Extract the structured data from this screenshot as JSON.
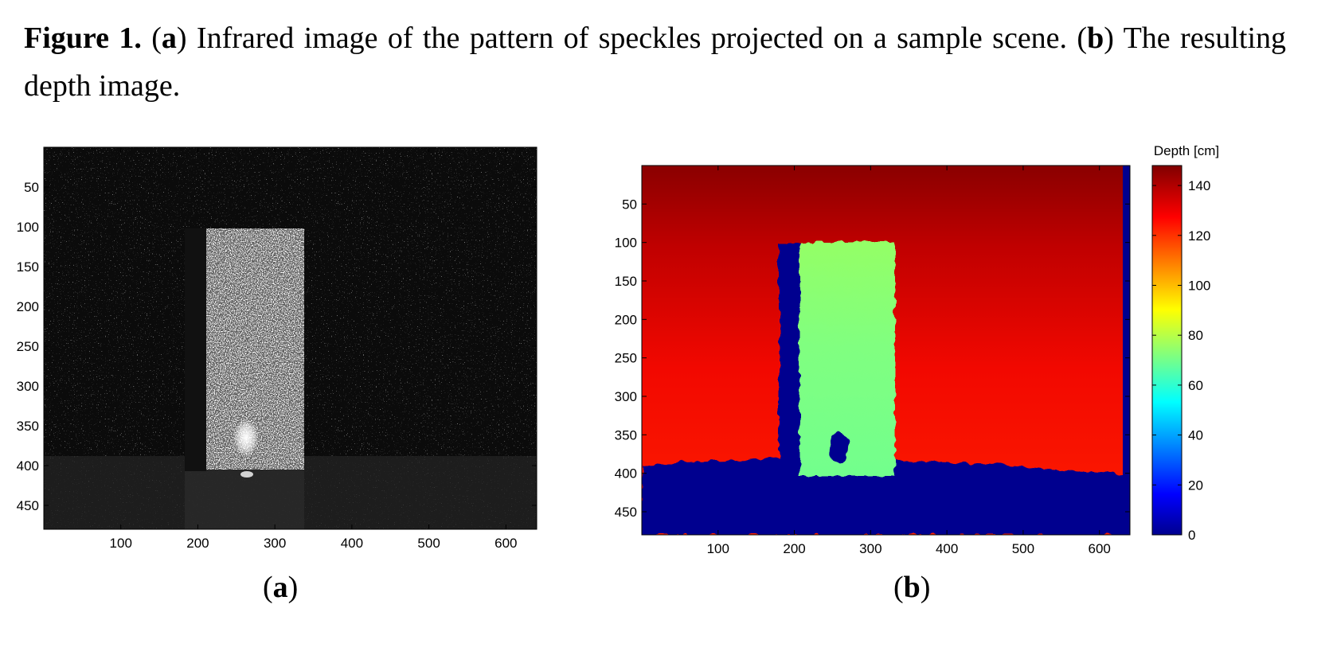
{
  "caption": {
    "figure_label": "Figure 1.",
    "part_a_letter": "a",
    "part_a_text": " Infrared image of the pattern of speckles projected on a sample scene.",
    "part_b_letter": "b",
    "part_b_text": " The resulting depth image."
  },
  "panels": {
    "a": {
      "label_letter": "a"
    },
    "b": {
      "label_letter": "b"
    }
  },
  "chart_data": [
    {
      "type": "image",
      "xlim": [
        0,
        640
      ],
      "ylim": [
        480,
        0
      ],
      "xticks": [
        100,
        200,
        300,
        400,
        500,
        600
      ],
      "yticks": [
        50,
        100,
        150,
        200,
        250,
        300,
        350,
        400,
        450
      ],
      "colormap": "gray"
    },
    {
      "type": "heatmap",
      "xlim": [
        0,
        640
      ],
      "ylim": [
        480,
        0
      ],
      "xticks": [
        100,
        200,
        300,
        400,
        500,
        600
      ],
      "yticks": [
        50,
        100,
        150,
        200,
        250,
        300,
        350,
        400,
        450
      ],
      "colormap": "jet",
      "colorbar": {
        "title": "Depth [cm]",
        "range": [
          0,
          148
        ],
        "ticks": [
          0,
          20,
          40,
          60,
          80,
          100,
          120,
          140
        ]
      },
      "regions": [
        {
          "x": [
            0,
            640
          ],
          "y": [
            0,
            390
          ],
          "depth": 135
        },
        {
          "x": [
            0,
            640
          ],
          "y": [
            390,
            480
          ],
          "depth": 0
        },
        {
          "x": [
            180,
            210
          ],
          "y": [
            100,
            400
          ],
          "depth": 0
        },
        {
          "x": [
            210,
            330
          ],
          "y": [
            100,
            400
          ],
          "depth": 74
        },
        {
          "x": [
            245,
            270
          ],
          "y": [
            345,
            385
          ],
          "depth": 0
        },
        {
          "x": [
            630,
            640
          ],
          "y": [
            0,
            480
          ],
          "depth": 0
        }
      ]
    }
  ],
  "colors": {
    "jet_dark_red": "#800000",
    "jet_red": "#ff1a00",
    "jet_green": "#80ff80",
    "jet_dark_blue": "#00008f"
  }
}
